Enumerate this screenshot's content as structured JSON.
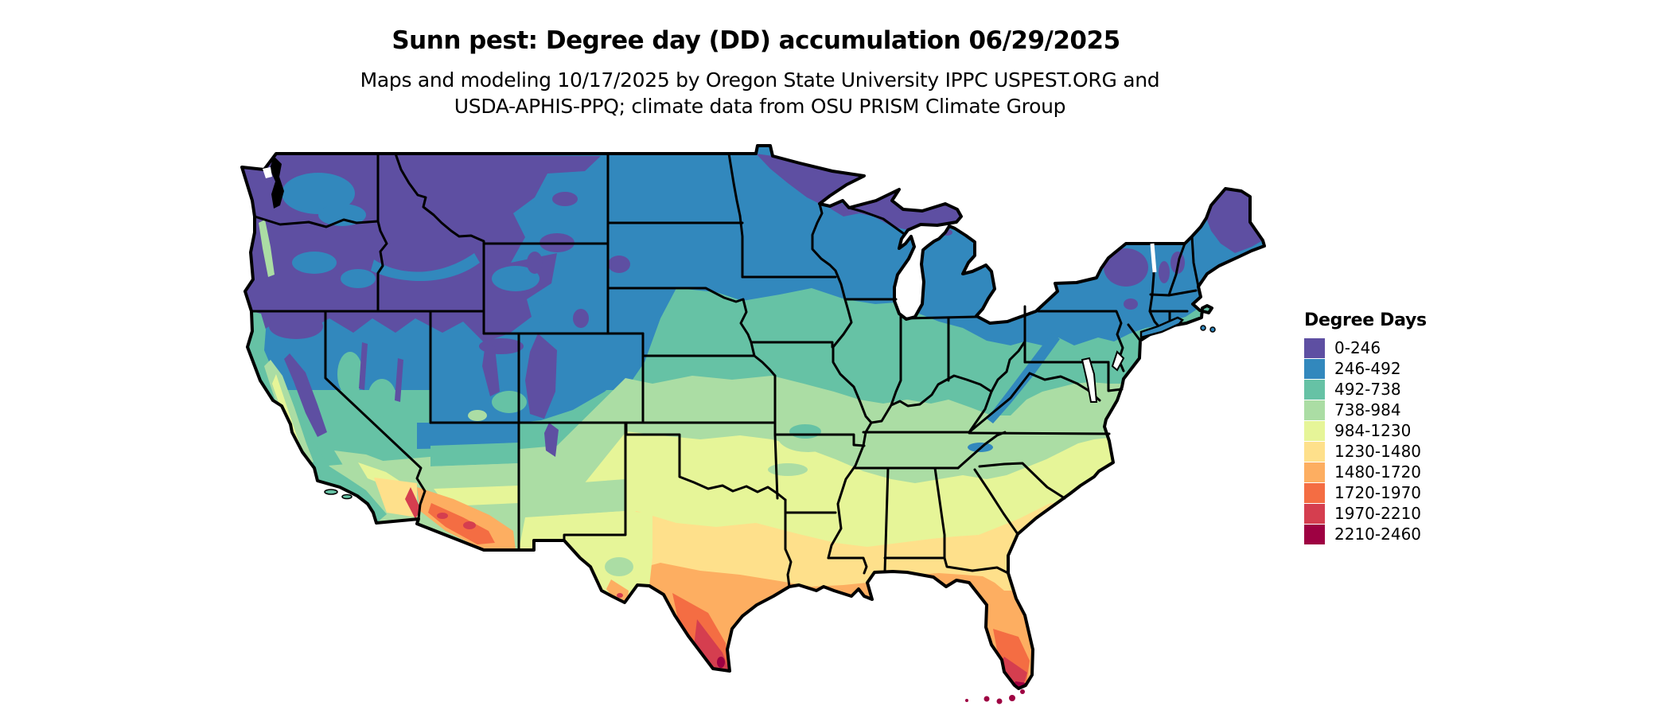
{
  "header": {
    "title": "Sunn pest: Degree day (DD) accumulation 06/29/2025",
    "subtitle_line1": "Maps and modeling 10/17/2025 by Oregon State University IPPC USPEST.ORG and",
    "subtitle_line2": "USDA-APHIS-PPQ; climate data from OSU PRISM Climate Group"
  },
  "map": {
    "region": "Contiguous United States",
    "kind": "degree-day accumulation raster with state borders"
  },
  "legend": {
    "title": "Degree Days",
    "items": [
      {
        "label": "0-246",
        "color": "#5e4fa2"
      },
      {
        "label": "246-492",
        "color": "#3288bd"
      },
      {
        "label": "492-738",
        "color": "#66c2a5"
      },
      {
        "label": "738-984",
        "color": "#abdda4"
      },
      {
        "label": "984-1230",
        "color": "#e6f598"
      },
      {
        "label": "1230-1480",
        "color": "#fee08b"
      },
      {
        "label": "1480-1720",
        "color": "#fdae61"
      },
      {
        "label": "1720-1970",
        "color": "#f46d43"
      },
      {
        "label": "1970-2210",
        "color": "#d53e4f"
      },
      {
        "label": "2210-2460",
        "color": "#9e0142"
      }
    ]
  }
}
